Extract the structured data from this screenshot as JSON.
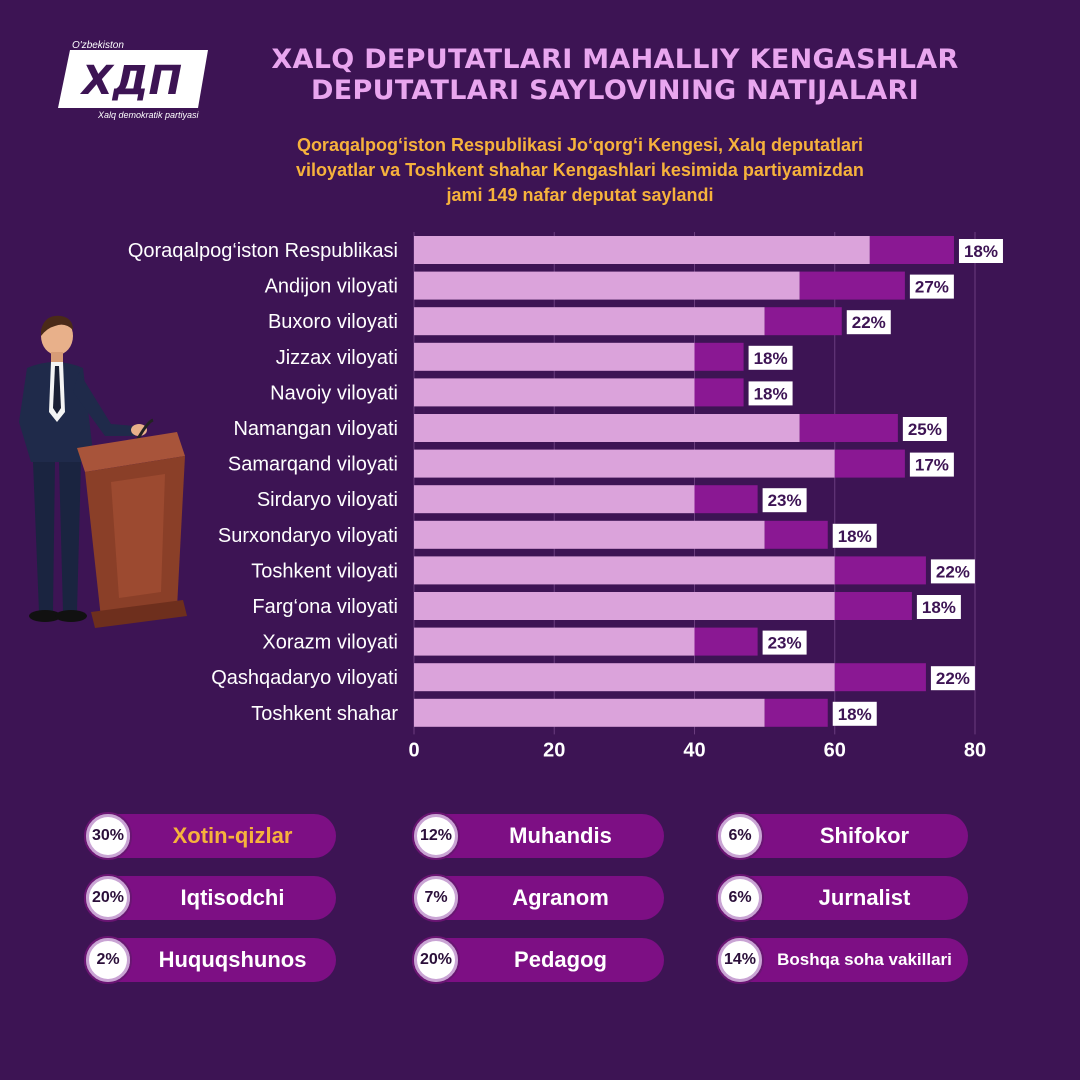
{
  "logo": {
    "top_text": "O'zbekiston",
    "mark": "XДП",
    "bottom_text": "Xalq demokratik partiyasi"
  },
  "title_line1": "XALQ DEPUTATLARI MAHALLIY KENGASHLAR",
  "title_line2": "DEPUTATLARI SAYLOVINING NATIJALARI",
  "subtitle_line1": "Qoraqalpog‘iston Respublikasi Jo‘qorg‘i Kengesi, Xalq deputatlari",
  "subtitle_line2": "viloyatlar va Toshkent shahar Kengashlari kesimida partiyamizdan",
  "subtitle_line3": "jami 149 nafar deputat saylandi",
  "chart_data": {
    "type": "bar",
    "orientation": "horizontal",
    "categories": [
      "Qoraqalpog‘iston Respublikasi",
      "Andijon viloyati",
      "Buxoro viloyati",
      "Jizzax viloyati",
      "Navoiy viloyati",
      "Namangan viloyati",
      "Samarqand viloyati",
      "Sirdaryo viloyati",
      "Surxondaryo viloyati",
      "Toshkent viloyati",
      "Farg‘ona viloyati",
      "Xorazm viloyati",
      "Qashqadaryo viloyati",
      "Toshkent shahar"
    ],
    "series": [
      {
        "values": [
          65,
          55,
          50,
          40,
          40,
          55,
          60,
          40,
          50,
          60,
          60,
          40,
          60,
          50
        ],
        "color": "#dba3db"
      },
      {
        "values": [
          12,
          15,
          11,
          7,
          7,
          14,
          10,
          9,
          9,
          13,
          11,
          9,
          13,
          9
        ],
        "color": "#8a1893"
      }
    ],
    "labels": [
      "18%",
      "27%",
      "22%",
      "18%",
      "18%",
      "25%",
      "17%",
      "23%",
      "18%",
      "22%",
      "18%",
      "23%",
      "22%",
      "18%"
    ],
    "stacked": true,
    "xlim": [
      0,
      80
    ],
    "xticks": [
      0,
      20,
      40,
      60,
      80
    ],
    "xlabel": "",
    "ylabel": "",
    "grid": "vertical"
  },
  "categories": [
    {
      "pct": "30%",
      "label": "Xotin-qizlar",
      "highlight": true
    },
    {
      "pct": "12%",
      "label": "Muhandis"
    },
    {
      "pct": "6%",
      "label": "Shifokor"
    },
    {
      "pct": "20%",
      "label": "Iqtisodchi"
    },
    {
      "pct": "7%",
      "label": "Agranom"
    },
    {
      "pct": "6%",
      "label": "Jurnalist"
    },
    {
      "pct": "2%",
      "label": "Huquqshunos"
    },
    {
      "pct": "20%",
      "label": "Pedagog"
    },
    {
      "pct": "14%",
      "label": "Boshqa soha vakillari"
    }
  ],
  "colors": {
    "background": "#3d1454",
    "title": "#e9a6ef",
    "subtitle": "#f6b23c",
    "bar_light": "#dba3db",
    "bar_dark": "#8a1893",
    "pill": "#7d0f84"
  }
}
